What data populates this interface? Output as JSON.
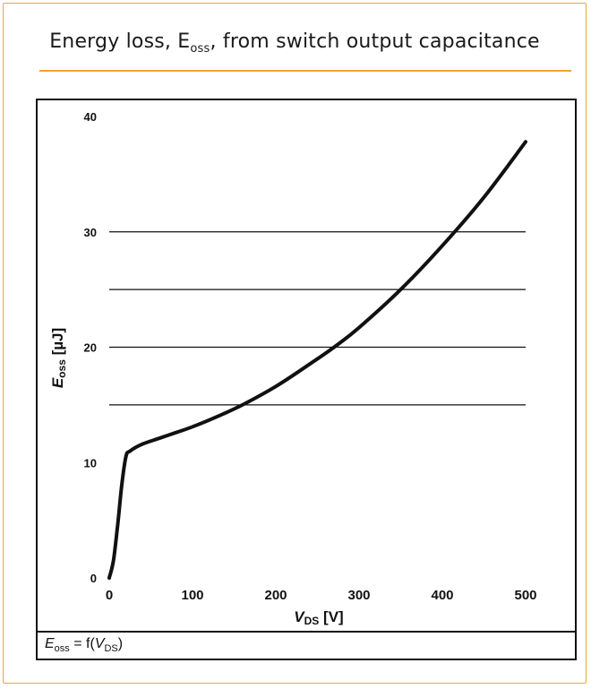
{
  "title": {
    "prefix": "Energy loss, E",
    "sub": "oss",
    "suffix": ", from switch output capacitance"
  },
  "footer": {
    "E": "E",
    "E_sub": "oss",
    "eq": " = f(",
    "V": "V",
    "V_sub": "DS",
    "close": ")"
  },
  "colors": {
    "accent": "#f2a23c",
    "line": "#111111"
  },
  "chart_data": {
    "type": "line",
    "title": "Energy loss, Eoss, from switch output capacitance",
    "xlabel": {
      "main": "V",
      "sub": "DS",
      "unit": " [V]"
    },
    "ylabel": {
      "main": "E",
      "sub": "oss",
      "unit": " [µJ]"
    },
    "xlim": [
      0,
      500
    ],
    "ylim": [
      0,
      40
    ],
    "xticks": [
      0,
      100,
      200,
      300,
      400,
      500
    ],
    "yticks": [
      0,
      10,
      20,
      30,
      40
    ],
    "gridlines_y": [
      15,
      20,
      25,
      30
    ],
    "grid": true,
    "series": [
      {
        "x": [
          0,
          5,
          10,
          15,
          20,
          25,
          40,
          60,
          80,
          100,
          130,
          160,
          200,
          240,
          270,
          300,
          350,
          400,
          450,
          500
        ],
        "y": [
          0,
          1.5,
          4.5,
          8.0,
          10.5,
          11.0,
          11.6,
          12.1,
          12.6,
          13.1,
          14.0,
          15.0,
          16.6,
          18.5,
          20.0,
          21.7,
          25.0,
          28.8,
          33.0,
          37.8
        ]
      }
    ]
  }
}
